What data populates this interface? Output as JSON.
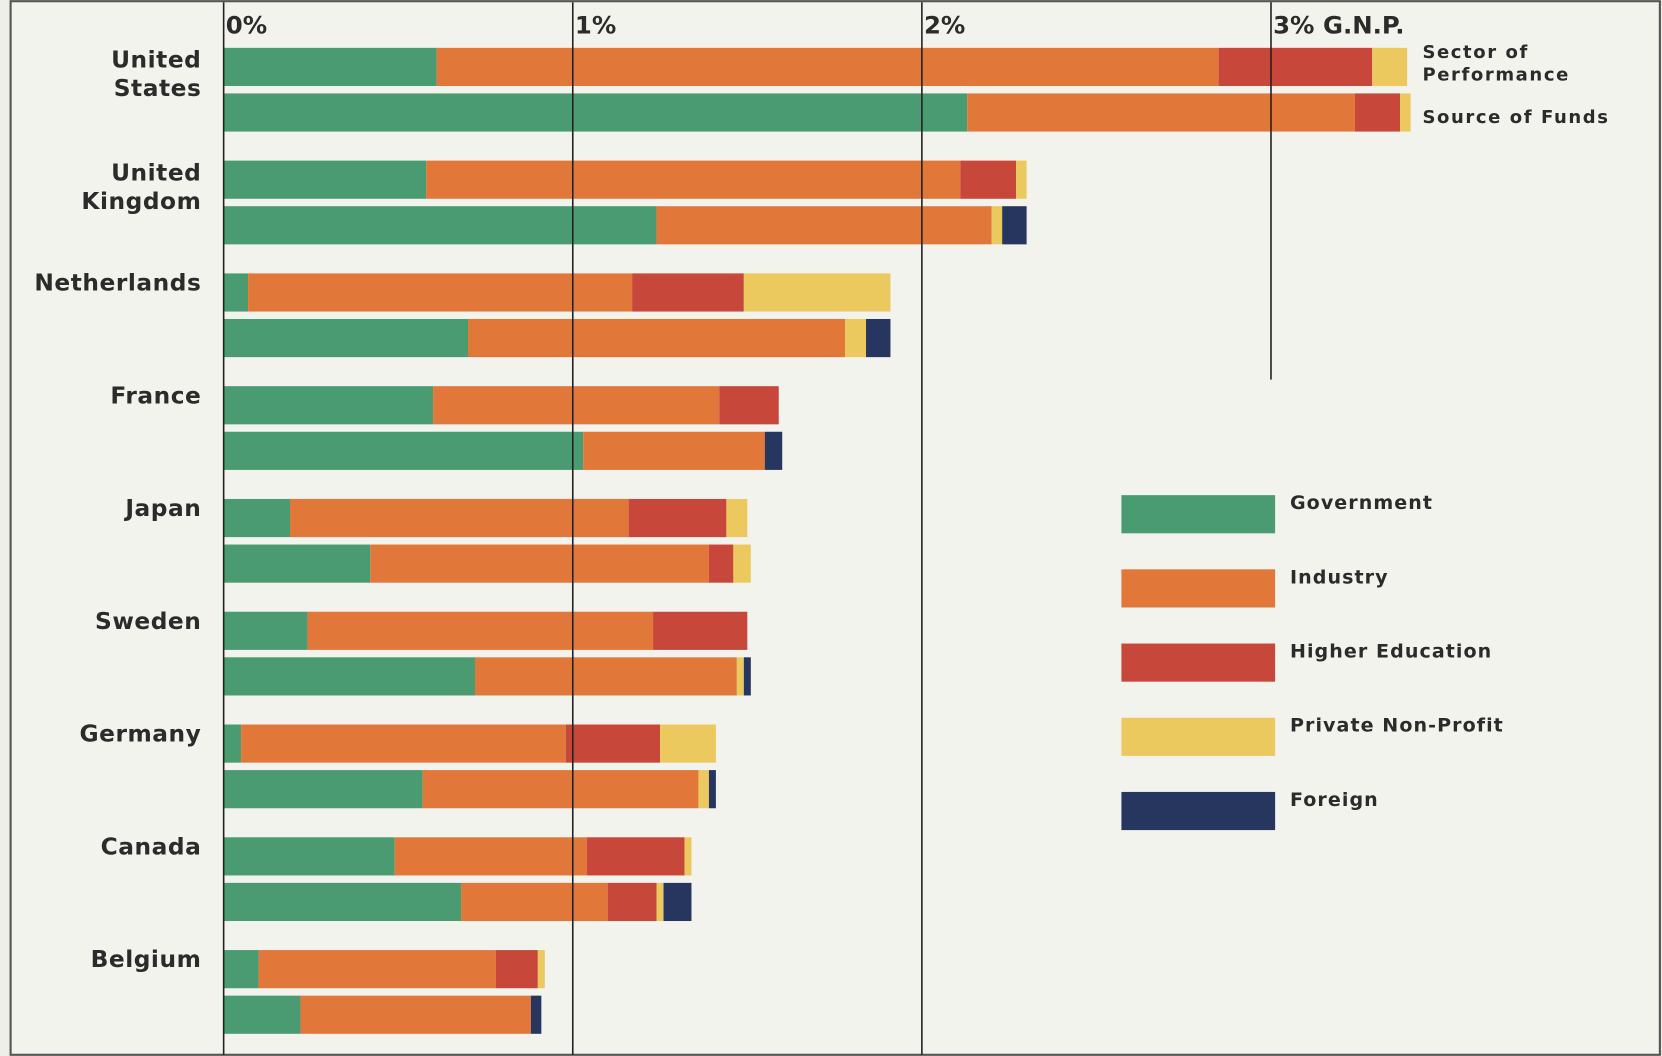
{
  "chart_data": {
    "type": "stacked-bar-pairs",
    "categories": [
      "United\nStates",
      "United\nKingdom",
      "Netherlands",
      "France",
      "Japan",
      "Sweden",
      "Germany",
      "Canada",
      "Belgium"
    ],
    "bar_labels": [
      "Sector of\nPerformance",
      "Source of Funds"
    ],
    "series": [
      {
        "name": "Government",
        "color": "#4a9a72",
        "values": [
          [
            0.61,
            2.13
          ],
          [
            0.58,
            1.24
          ],
          [
            0.07,
            0.7
          ],
          [
            0.6,
            1.03
          ],
          [
            0.19,
            0.42
          ],
          [
            0.24,
            0.72
          ],
          [
            0.05,
            0.57
          ],
          [
            0.49,
            0.68
          ],
          [
            0.1,
            0.22
          ]
        ]
      },
      {
        "name": "Industry",
        "color": "#e2773a",
        "values": [
          [
            2.24,
            1.11
          ],
          [
            1.53,
            0.96
          ],
          [
            1.1,
            1.08
          ],
          [
            0.82,
            0.52
          ],
          [
            0.97,
            0.97
          ],
          [
            0.99,
            0.75
          ],
          [
            0.93,
            0.79
          ],
          [
            0.55,
            0.42
          ],
          [
            0.68,
            0.66
          ]
        ]
      },
      {
        "name": "Higher Education",
        "color": "#c8473b",
        "values": [
          [
            0.44,
            0.13
          ],
          [
            0.16,
            0
          ],
          [
            0.32,
            0
          ],
          [
            0.17,
            0
          ],
          [
            0.28,
            0.07
          ],
          [
            0.27,
            0
          ],
          [
            0.27,
            0
          ],
          [
            0.28,
            0.14
          ],
          [
            0.12,
            0
          ]
        ]
      },
      {
        "name": "Private Non-Profit",
        "color": "#ecc95e",
        "values": [
          [
            0.1,
            0.03
          ],
          [
            0.03,
            0.03
          ],
          [
            0.42,
            0.06
          ],
          [
            0,
            0
          ],
          [
            0.06,
            0.05
          ],
          [
            0,
            0.02
          ],
          [
            0.16,
            0.03
          ],
          [
            0.02,
            0.02
          ],
          [
            0.02,
            0
          ]
        ]
      },
      {
        "name": "Foreign",
        "color": "#27365f",
        "values": [
          [
            0,
            0
          ],
          [
            0,
            0.07
          ],
          [
            0,
            0.07
          ],
          [
            0,
            0.05
          ],
          [
            0,
            0
          ],
          [
            0,
            0.02
          ],
          [
            0,
            0.02
          ],
          [
            0,
            0.08
          ],
          [
            0,
            0.03
          ]
        ]
      }
    ],
    "xlim": [
      0,
      4.12
    ],
    "xticks": [
      {
        "value": 0,
        "label": "0%"
      },
      {
        "value": 1,
        "label": "1%"
      },
      {
        "value": 2,
        "label": "2%"
      },
      {
        "value": 3,
        "label": "3% G.N.P."
      }
    ]
  }
}
